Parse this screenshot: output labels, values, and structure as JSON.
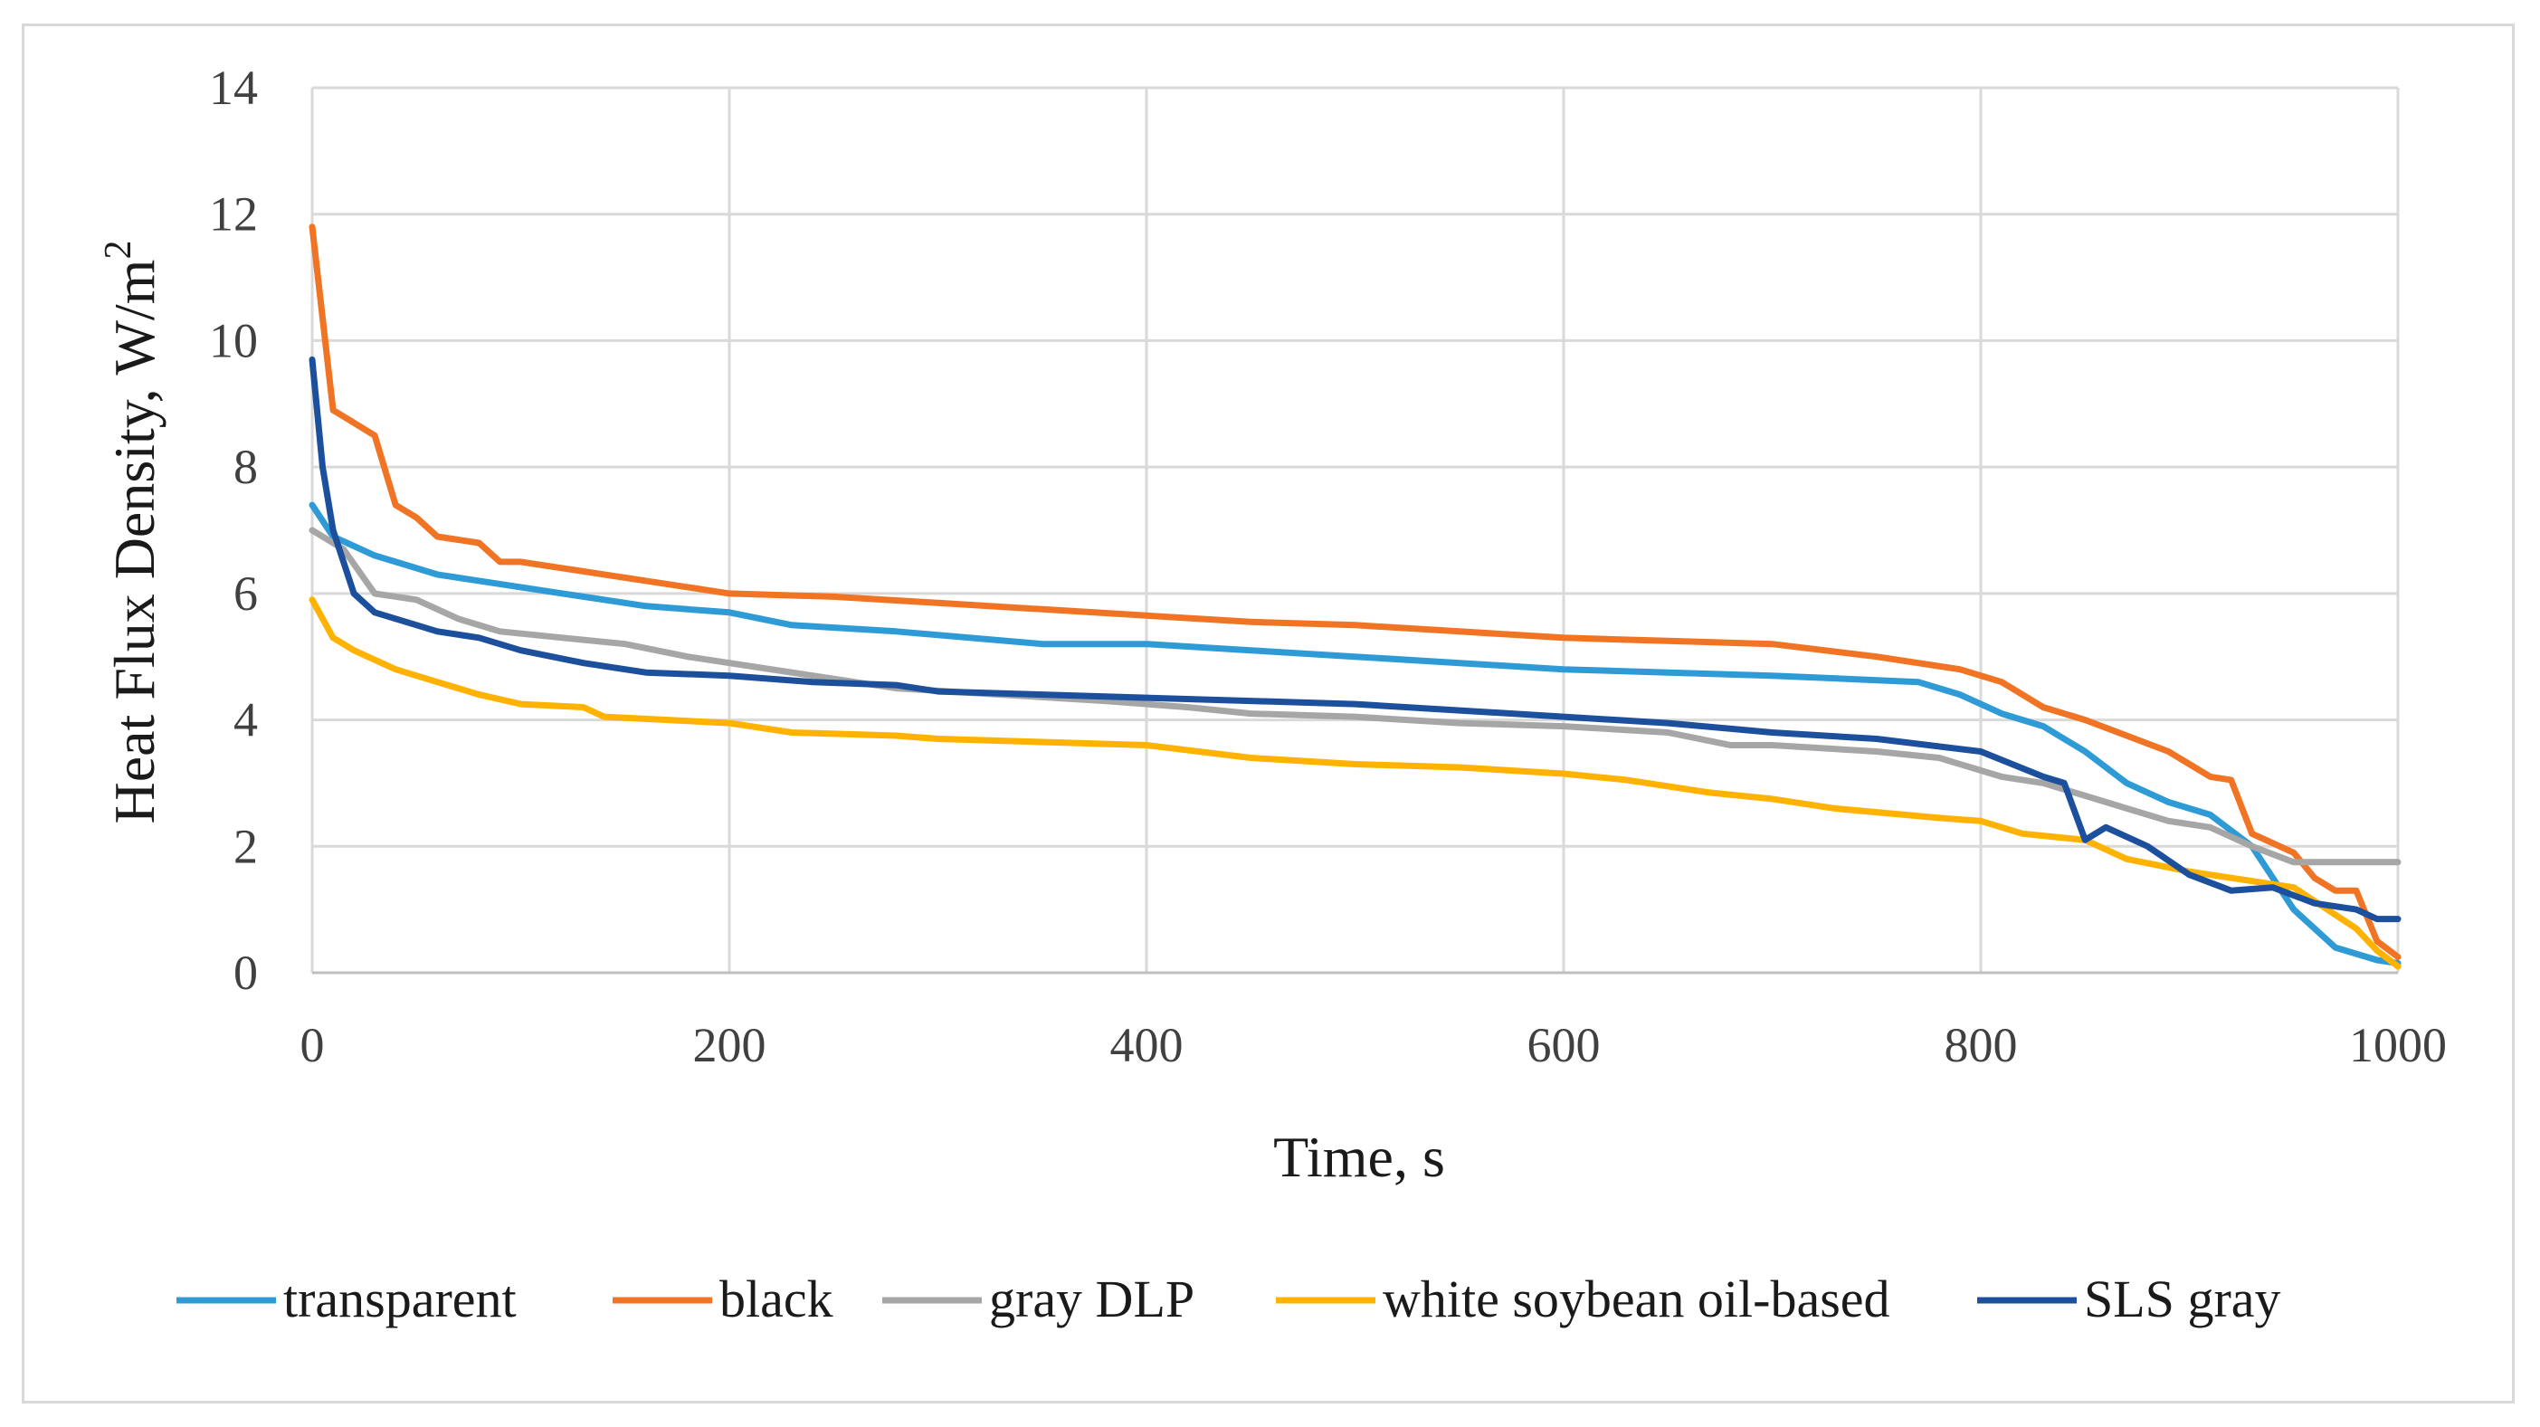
{
  "chart_data": {
    "type": "line",
    "title": "",
    "xlabel": "Time, s",
    "ylabel": "Heat Flux Density, W/m",
    "ylabel_sup": "2",
    "xlim": [
      0,
      1000
    ],
    "ylim": [
      0,
      14
    ],
    "xticks": [
      0,
      200,
      400,
      600,
      800,
      1000
    ],
    "yticks": [
      0,
      2,
      4,
      6,
      8,
      10,
      12,
      14
    ],
    "xtick_labels": [
      "0",
      "200",
      "400",
      "600",
      "800",
      "1000"
    ],
    "ytick_labels": [
      "0",
      "2",
      "4",
      "6",
      "8",
      "10",
      "12",
      "14"
    ],
    "grid": true,
    "legend_position": "bottom",
    "series": [
      {
        "name": "transparent",
        "color": "#2e9bd6",
        "x": [
          0,
          10,
          30,
          40,
          60,
          80,
          100,
          120,
          140,
          160,
          200,
          230,
          280,
          350,
          400,
          450,
          500,
          600,
          650,
          700,
          770,
          790,
          810,
          830,
          850,
          870,
          890,
          910,
          930,
          950,
          970,
          990,
          1000
        ],
        "y": [
          7.4,
          6.9,
          6.6,
          6.5,
          6.3,
          6.2,
          6.1,
          6.0,
          5.9,
          5.8,
          5.7,
          5.5,
          5.4,
          5.2,
          5.2,
          5.1,
          5.0,
          4.8,
          4.75,
          4.7,
          4.6,
          4.4,
          4.1,
          3.9,
          3.5,
          3.0,
          2.7,
          2.5,
          2.0,
          1.0,
          0.4,
          0.2,
          0.15
        ]
      },
      {
        "name": "black",
        "color": "#f07424",
        "x": [
          0,
          10,
          20,
          30,
          40,
          50,
          60,
          70,
          80,
          90,
          100,
          120,
          140,
          160,
          200,
          250,
          300,
          350,
          400,
          450,
          500,
          550,
          600,
          650,
          700,
          750,
          790,
          810,
          830,
          850,
          870,
          890,
          910,
          920,
          930,
          950,
          960,
          970,
          980,
          990,
          1000
        ],
        "y": [
          11.8,
          8.9,
          8.7,
          8.5,
          7.4,
          7.2,
          6.9,
          6.85,
          6.8,
          6.5,
          6.5,
          6.4,
          6.3,
          6.2,
          6.0,
          5.95,
          5.85,
          5.75,
          5.65,
          5.55,
          5.5,
          5.4,
          5.3,
          5.25,
          5.2,
          5.0,
          4.8,
          4.6,
          4.2,
          4.0,
          3.75,
          3.5,
          3.1,
          3.05,
          2.2,
          1.9,
          1.5,
          1.3,
          1.3,
          0.5,
          0.25
        ]
      },
      {
        "name": "gray DLP",
        "color": "#a6a6a6",
        "x": [
          0,
          15,
          30,
          50,
          70,
          90,
          120,
          150,
          180,
          200,
          240,
          280,
          330,
          380,
          420,
          450,
          500,
          550,
          600,
          650,
          680,
          700,
          750,
          780,
          810,
          830,
          850,
          870,
          890,
          910,
          930,
          950,
          1000
        ],
        "y": [
          7.0,
          6.7,
          6.0,
          5.9,
          5.6,
          5.4,
          5.3,
          5.2,
          5.0,
          4.9,
          4.7,
          4.5,
          4.4,
          4.3,
          4.2,
          4.1,
          4.05,
          3.95,
          3.9,
          3.8,
          3.6,
          3.6,
          3.5,
          3.4,
          3.1,
          3.0,
          2.8,
          2.6,
          2.4,
          2.3,
          2.0,
          1.75,
          1.75
        ]
      },
      {
        "name": "white soybean oil-based",
        "color": "#ffb200",
        "x": [
          0,
          10,
          20,
          40,
          60,
          80,
          100,
          130,
          140,
          200,
          230,
          280,
          300,
          350,
          400,
          450,
          500,
          550,
          600,
          630,
          670,
          700,
          730,
          780,
          800,
          820,
          850,
          870,
          900,
          930,
          950,
          980,
          990,
          1000
        ],
        "y": [
          5.9,
          5.3,
          5.1,
          4.8,
          4.6,
          4.4,
          4.25,
          4.2,
          4.05,
          3.95,
          3.8,
          3.75,
          3.7,
          3.65,
          3.6,
          3.4,
          3.3,
          3.25,
          3.15,
          3.05,
          2.85,
          2.75,
          2.6,
          2.45,
          2.4,
          2.2,
          2.1,
          1.8,
          1.6,
          1.45,
          1.35,
          0.7,
          0.35,
          0.1
        ]
      },
      {
        "name": "SLS gray",
        "color": "#1c4f9c",
        "x": [
          0,
          5,
          10,
          20,
          30,
          40,
          50,
          60,
          80,
          100,
          130,
          160,
          200,
          240,
          280,
          300,
          350,
          400,
          450,
          500,
          550,
          600,
          650,
          700,
          750,
          800,
          830,
          840,
          850,
          860,
          880,
          900,
          920,
          940,
          960,
          980,
          990,
          1000
        ],
        "y": [
          9.7,
          8.0,
          7.0,
          6.0,
          5.7,
          5.6,
          5.5,
          5.4,
          5.3,
          5.1,
          4.9,
          4.75,
          4.7,
          4.6,
          4.55,
          4.45,
          4.4,
          4.35,
          4.3,
          4.25,
          4.15,
          4.05,
          3.95,
          3.8,
          3.7,
          3.5,
          3.1,
          3.0,
          2.1,
          2.3,
          2.0,
          1.55,
          1.3,
          1.35,
          1.1,
          1.0,
          0.85,
          0.85
        ]
      }
    ]
  }
}
